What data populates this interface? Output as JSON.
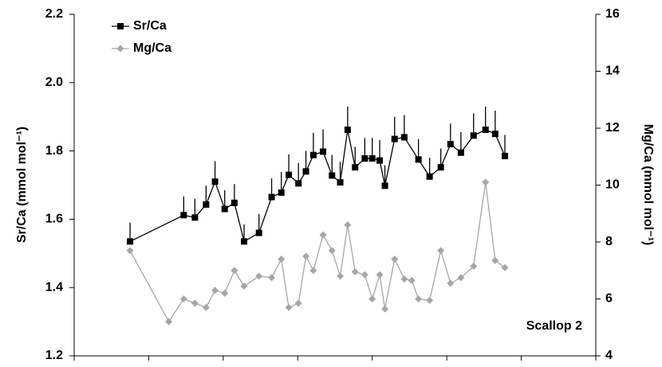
{
  "chart_data": {
    "type": "line",
    "y_label": "Sr/Ca (mmol mol⁻¹)",
    "y2_label": "Mg/Ca (mmol mol⁻¹)",
    "annotation": "Scallop 2",
    "xlim": [
      0,
      7
    ],
    "xticks": [
      0,
      1,
      2,
      3,
      4,
      5,
      6,
      7
    ],
    "ylim": [
      1.2,
      2.2
    ],
    "yticks": [
      1.2,
      1.4,
      1.6,
      1.8,
      {
        "value": 2,
        "label": "2.0"
      },
      2.2
    ],
    "y2lim": [
      4,
      16
    ],
    "y2ticks": [
      4,
      6,
      8,
      10,
      12,
      14,
      16
    ],
    "series": [
      {
        "name": "Sr/Ca",
        "color": "#000000",
        "marker": "square",
        "x": [
          0.75,
          1.47,
          1.62,
          1.77,
          1.89,
          2.02,
          2.15,
          2.28,
          2.48,
          2.65,
          2.78,
          2.88,
          3.01,
          3.11,
          3.21,
          3.34,
          3.46,
          3.57,
          3.67,
          3.77,
          3.9,
          4.0,
          4.1,
          4.17,
          4.3,
          4.43,
          4.62,
          4.77,
          4.92,
          5.05,
          5.19,
          5.36,
          5.52,
          5.65,
          5.78
        ],
        "values": [
          1.535,
          1.612,
          1.605,
          1.643,
          1.71,
          1.63,
          1.648,
          1.535,
          1.56,
          1.665,
          1.678,
          1.73,
          1.705,
          1.74,
          1.788,
          1.798,
          1.728,
          1.708,
          1.862,
          1.752,
          1.778,
          1.778,
          1.772,
          1.698,
          1.835,
          1.84,
          1.775,
          1.725,
          1.752,
          1.82,
          1.795,
          1.845,
          1.862,
          1.85,
          1.785
        ],
        "errors": [
          0.055,
          0.055,
          0.055,
          0.055,
          0.06,
          0.055,
          0.055,
          0.05,
          0.055,
          0.055,
          0.06,
          0.06,
          0.06,
          0.06,
          0.065,
          0.065,
          0.06,
          0.06,
          0.068,
          0.06,
          0.06,
          0.06,
          0.06,
          0.06,
          0.065,
          0.065,
          0.06,
          0.055,
          0.055,
          0.06,
          0.06,
          0.065,
          0.068,
          0.068,
          0.062
        ]
      },
      {
        "name": "Mg/Ca",
        "color": "#a6a6a6",
        "marker": "diamond",
        "axis": "y2",
        "x": [
          0.75,
          1.27,
          1.47,
          1.62,
          1.77,
          1.89,
          2.02,
          2.15,
          2.28,
          2.48,
          2.65,
          2.78,
          2.88,
          3.01,
          3.11,
          3.21,
          3.34,
          3.46,
          3.57,
          3.67,
          3.77,
          3.9,
          4.0,
          4.1,
          4.17,
          4.3,
          4.43,
          4.53,
          4.62,
          4.77,
          4.92,
          5.05,
          5.19,
          5.36,
          5.52,
          5.65,
          5.78
        ],
        "values": [
          7.7,
          5.2,
          6.0,
          5.85,
          5.7,
          6.3,
          6.2,
          7.0,
          6.45,
          6.8,
          6.75,
          7.4,
          5.7,
          5.85,
          7.5,
          7.0,
          8.25,
          7.7,
          6.8,
          8.6,
          6.95,
          6.85,
          6.0,
          6.85,
          5.65,
          7.4,
          6.7,
          6.65,
          6.0,
          5.95,
          7.7,
          6.55,
          6.75,
          7.15,
          10.1,
          7.35,
          7.1
        ]
      }
    ]
  }
}
